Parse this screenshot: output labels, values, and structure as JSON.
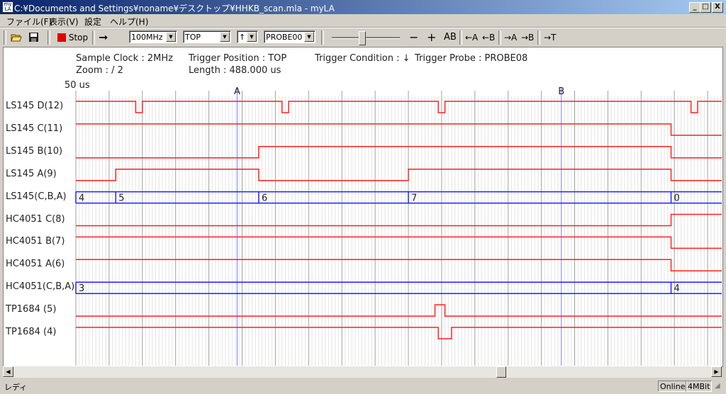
{
  "window": {
    "title": "C:¥Documents and Settings¥noname¥デスクトップ¥HHKB_scan.mla - myLA",
    "icon": "app-icon",
    "minimize": "_",
    "maximize": "□",
    "close": "X"
  },
  "menu": [
    "ファイル(F)",
    "表示(V)",
    "設定",
    "ヘルプ(H)"
  ],
  "toolbar": {
    "stop_label": "Stop",
    "clock": "100MHz",
    "trigger_pos": "TOP",
    "edge": "↑",
    "probe": "PROBE00",
    "slider_value": 0.4,
    "minus": "−",
    "plus": "+",
    "ab": "AB",
    "left_a": "←A",
    "left_b": "←B",
    "right_a": "→A",
    "right_b": "→B",
    "right_t": "→T"
  },
  "info": {
    "sample_clock": "Sample Clock : 2MHz",
    "trigger_position": "Trigger Position : TOP",
    "trigger_condition": "Trigger Condition : ↓",
    "trigger_probe": "Trigger Probe : PROBE08",
    "zoom": "Zoom : /   2",
    "length": "Length : 488.000 us",
    "time_start": "50 us"
  },
  "cursors": [
    {
      "label": "A",
      "tick": 48.5
    },
    {
      "label": "B",
      "tick": 146
    }
  ],
  "chart_data": {
    "type": "timing",
    "x_unit": "minor grid ticks from start",
    "x_range": [
      0,
      194
    ],
    "signals": [
      {
        "name": "LS145 D(12)",
        "kind": "bit",
        "initial": 1,
        "edges": [
          18,
          20,
          62,
          64,
          109,
          111,
          185,
          187
        ]
      },
      {
        "name": "LS145 C(11)",
        "kind": "bit",
        "initial": 1,
        "edges": [
          179
        ]
      },
      {
        "name": "LS145 B(10)",
        "kind": "bit",
        "initial": 0,
        "edges": [
          55,
          179
        ]
      },
      {
        "name": "LS145 A(9)",
        "kind": "bit",
        "initial": 0,
        "edges": [
          12,
          55,
          100,
          179
        ]
      },
      {
        "name": "LS145(C,B,A)",
        "kind": "bus",
        "segments": [
          {
            "t": 0,
            "v": "4"
          },
          {
            "t": 12,
            "v": "5"
          },
          {
            "t": 55,
            "v": "6"
          },
          {
            "t": 100,
            "v": "7"
          },
          {
            "t": 179,
            "v": "0"
          }
        ]
      },
      {
        "name": "HC4051 C(8)",
        "kind": "bit",
        "initial": 0,
        "edges": [
          179
        ]
      },
      {
        "name": "HC4051 B(7)",
        "kind": "bit",
        "initial": 1,
        "edges": [
          179
        ]
      },
      {
        "name": "HC4051 A(6)",
        "kind": "bit",
        "initial": 1,
        "edges": [
          179
        ]
      },
      {
        "name": "HC4051(C,B,A)",
        "kind": "bus",
        "segments": [
          {
            "t": 0,
            "v": "3"
          },
          {
            "t": 179,
            "v": "4"
          }
        ]
      },
      {
        "name": "TP1684 (5)",
        "kind": "bit",
        "initial": 0,
        "edges": [
          108,
          111
        ]
      },
      {
        "name": "TP1684 (4)",
        "kind": "bit",
        "initial": 1,
        "edges": [
          109,
          113
        ]
      }
    ],
    "colors": {
      "bit": "#ff2020",
      "bus": "#2020ff",
      "cursor": "#8080ff"
    }
  },
  "status": {
    "text": "レディ",
    "online": "Online",
    "memory": "4MBit"
  }
}
